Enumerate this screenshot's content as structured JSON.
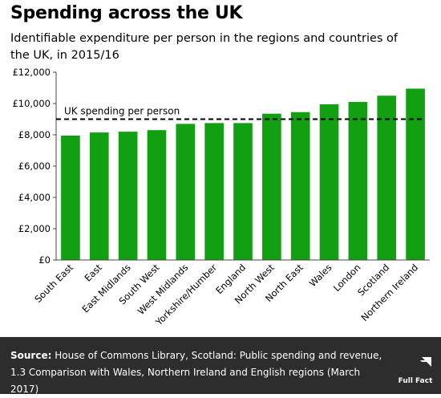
{
  "header": {
    "title": "Spending across the UK",
    "subtitle": "Identifiable expenditure per person in the regions and countries of the UK, in 2015/16"
  },
  "chart_data": {
    "type": "bar",
    "categories": [
      "South East",
      "East",
      "East Midlands",
      "South West",
      "West Midlands",
      "Yorkshire/Humber",
      "England",
      "North West",
      "North East",
      "Wales",
      "London",
      "Scotland",
      "Northern Ireland"
    ],
    "values": [
      7950,
      8150,
      8200,
      8300,
      8700,
      8750,
      8750,
      9350,
      9450,
      9950,
      10100,
      10500,
      10950
    ],
    "ylim": [
      0,
      12000
    ],
    "yticks": [
      0,
      2000,
      4000,
      6000,
      8000,
      10000,
      12000
    ],
    "ytick_labels": [
      "£0",
      "£2,000",
      "£4,000",
      "£6,000",
      "£8,000",
      "£10,000",
      "£12,000"
    ],
    "reference_line": {
      "label": "UK spending per person",
      "value": 9000
    },
    "bar_color": "#12a012",
    "grid": false
  },
  "footer": {
    "source_label": "Source:",
    "source_text": " House of Commons Library, Scotland: Public spending and revenue, 1.3 Comparison with Wales, Northern Ireland and English regions (March 2017)",
    "logo_text": "Full Fact"
  }
}
